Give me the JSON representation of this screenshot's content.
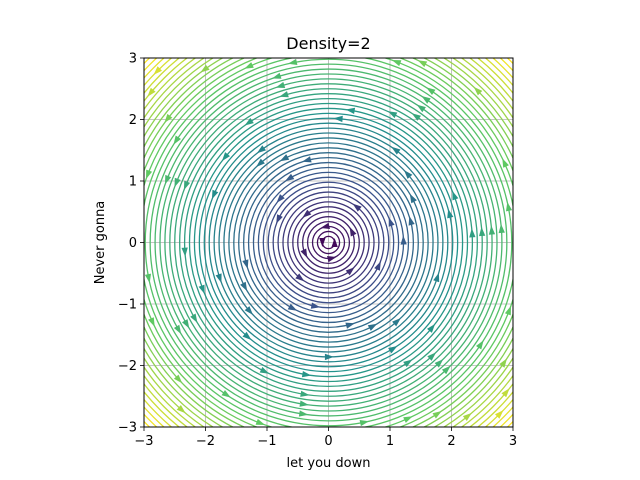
{
  "chart_data": {
    "type": "streamplot",
    "title": "Density=2",
    "xlabel": "let you down",
    "ylabel": "Never gonna",
    "xlim": [
      -3,
      3
    ],
    "ylim": [
      -3,
      3
    ],
    "xticks": [
      -3,
      -2,
      -1,
      0,
      1,
      2,
      3
    ],
    "yticks": [
      -3,
      -2,
      -1,
      0,
      1,
      2,
      3
    ],
    "xtick_labels": [
      "−3",
      "−2",
      "−1",
      "0",
      "1",
      "2",
      "3"
    ],
    "ytick_labels": [
      "−3",
      "−2",
      "−1",
      "0",
      "1",
      "2",
      "3"
    ],
    "grid": true,
    "field": {
      "u": "-y",
      "v": "x",
      "direction": "counterclockwise",
      "center": [
        0,
        0
      ]
    },
    "colormap": "viridis",
    "color_by": "distance from center",
    "stream_radii": [
      0.1,
      0.18,
      0.26,
      0.34,
      0.42,
      0.5,
      0.58,
      0.66,
      0.74,
      0.82,
      0.9,
      0.98,
      1.06,
      1.14,
      1.22,
      1.3,
      1.38,
      1.46,
      1.54,
      1.62,
      1.7,
      1.78,
      1.86,
      1.94,
      2.02,
      2.1,
      2.18,
      2.26,
      2.34,
      2.42,
      2.5,
      2.58,
      2.66,
      2.74,
      2.82,
      2.9,
      2.98,
      3.06,
      3.14,
      3.22,
      3.3,
      3.38,
      3.46,
      3.54,
      3.62,
      3.7,
      3.78,
      3.86,
      3.94,
      4.02,
      4.1,
      4.18
    ]
  }
}
